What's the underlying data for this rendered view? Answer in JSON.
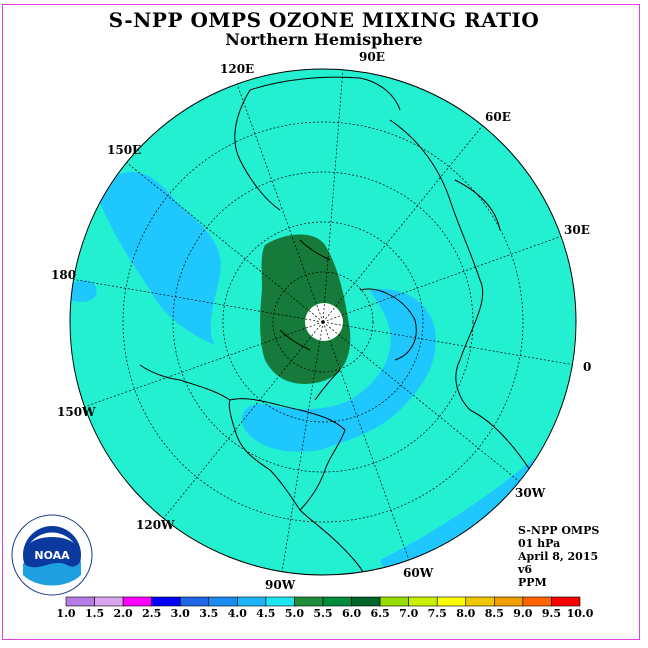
{
  "title": "S-NPP OMPS OZONE MIXING RATIO",
  "subtitle": "Northern Hemisphere",
  "longitude_labels": [
    "90E",
    "60E",
    "30E",
    "0",
    "30W",
    "60W",
    "90W",
    "120W",
    "150W",
    "180",
    "150E",
    "120E"
  ],
  "info": {
    "instrument": "S-NPP OMPS",
    "level": "01 hPa",
    "date": "April 8, 2015",
    "version": "v6",
    "units": "PPM"
  },
  "logo": {
    "text": "NOAA",
    "ring_text": "NATIONAL OCEANIC AND ATMOSPHERIC ADMINISTRATION · U.S. DEPARTMENT OF COMMERCE"
  },
  "colorbar": {
    "labels": [
      "1.0",
      "1.5",
      "2.0",
      "2.5",
      "3.0",
      "3.5",
      "4.0",
      "4.5",
      "5.0",
      "5.5",
      "6.0",
      "6.5",
      "7.0",
      "7.5",
      "8.0",
      "8.5",
      "9.0",
      "9.5",
      "10.0"
    ],
    "colors": [
      "#b77be6",
      "#d9a5ef",
      "#ff00ff",
      "#0000ff",
      "#1e66e6",
      "#1a8cf0",
      "#1eb4f8",
      "#1ee6f0",
      "#1e8c3c",
      "#008c3c",
      "#006428",
      "#96dc00",
      "#c8f000",
      "#ffff00",
      "#f0c800",
      "#f0a000",
      "#ff6400",
      "#ff0000",
      "#8c5a3c"
    ]
  },
  "map_colors": {
    "background_field": "#22f0d0",
    "low_band": "#1ec8ff",
    "high_core": "#157a3a",
    "no_data": "#ffffff"
  }
}
